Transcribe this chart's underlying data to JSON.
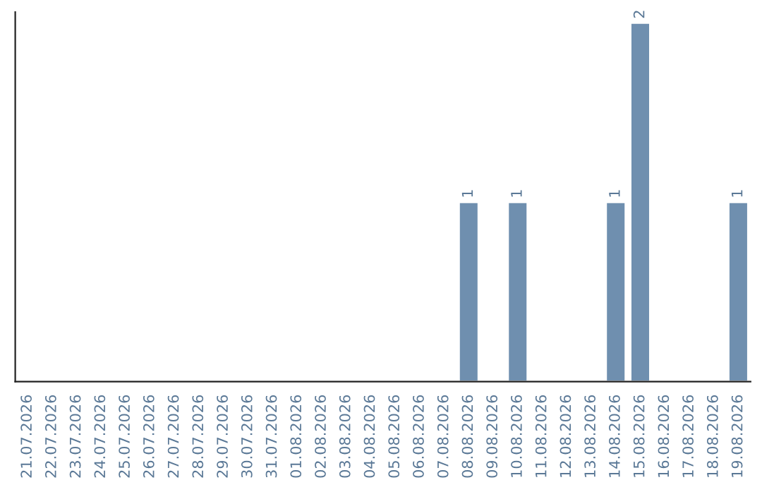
{
  "chart_data": {
    "type": "bar",
    "categories": [
      "21.07.2026",
      "22.07.2026",
      "23.07.2026",
      "24.07.2026",
      "25.07.2026",
      "26.07.2026",
      "27.07.2026",
      "28.07.2026",
      "29.07.2026",
      "30.07.2026",
      "31.07.2026",
      "01.08.2026",
      "02.08.2026",
      "03.08.2026",
      "04.08.2026",
      "05.08.2026",
      "06.08.2026",
      "07.08.2026",
      "08.08.2026",
      "09.08.2026",
      "10.08.2026",
      "11.08.2026",
      "12.08.2026",
      "13.08.2026",
      "14.08.2026",
      "15.08.2026",
      "16.08.2026",
      "17.08.2026",
      "18.08.2026",
      "19.08.2026"
    ],
    "values": [
      null,
      null,
      null,
      null,
      null,
      null,
      null,
      null,
      null,
      null,
      null,
      null,
      null,
      null,
      null,
      null,
      null,
      null,
      1,
      null,
      1,
      null,
      null,
      null,
      1,
      2,
      null,
      null,
      null,
      1
    ],
    "data_labels": true,
    "color": "#6f8faf",
    "tick_labels": "x"
  }
}
